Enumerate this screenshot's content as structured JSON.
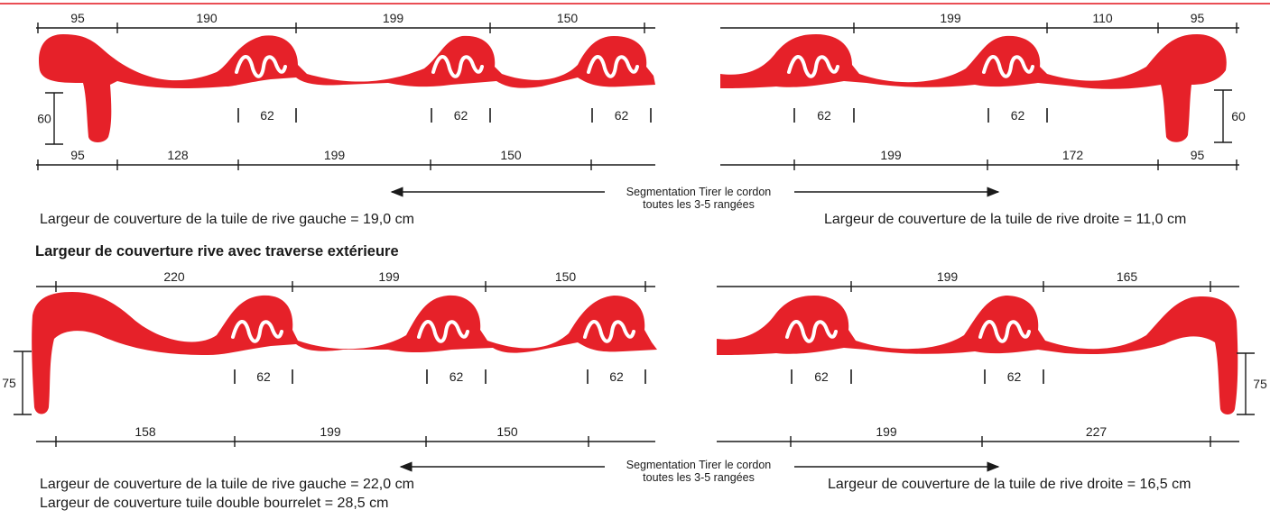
{
  "colors": {
    "tile_red": "#e62129",
    "rule_red": "#e3131b",
    "dim_line": "#1a1a1a"
  },
  "section1": {
    "left": {
      "top_dims": [
        "95",
        "190",
        "199",
        "150"
      ],
      "bottom_dims": [
        "95",
        "128",
        "199",
        "150"
      ],
      "joint_dims": [
        "62",
        "62",
        "62"
      ],
      "height": "60",
      "caption": "Largeur de couverture de la tuile de rive gauche = 19,0 cm"
    },
    "right": {
      "top_dims": [
        "199",
        "110",
        "95"
      ],
      "bottom_dims": [
        "199",
        "172",
        "95"
      ],
      "joint_dims": [
        "62",
        "62"
      ],
      "height": "60",
      "caption": "Largeur de couverture de la tuile de rive droite = 11,0 cm"
    },
    "segmentation": {
      "line1": "Segmentation Tirer le cordon",
      "line2": "toutes les 3-5 rangées"
    }
  },
  "section2": {
    "heading": "Largeur de couverture rive avec traverse extérieure",
    "left": {
      "top_dims": [
        "220",
        "199",
        "150"
      ],
      "bottom_dims": [
        "158",
        "199",
        "150"
      ],
      "joint_dims": [
        "62",
        "62",
        "62"
      ],
      "height": "75",
      "caption": "Largeur de couverture de la tuile de rive gauche = 22,0 cm",
      "caption2": "Largeur de couverture tuile double bourrelet = 28,5 cm"
    },
    "right": {
      "top_dims": [
        "199",
        "165"
      ],
      "bottom_dims": [
        "199",
        "227"
      ],
      "joint_dims": [
        "62",
        "62"
      ],
      "height": "75",
      "caption": "Largeur de couverture de la tuile de rive droite = 16,5 cm"
    },
    "segmentation": {
      "line1": "Segmentation Tirer le cordon",
      "line2": "toutes les 3-5 rangées"
    }
  }
}
